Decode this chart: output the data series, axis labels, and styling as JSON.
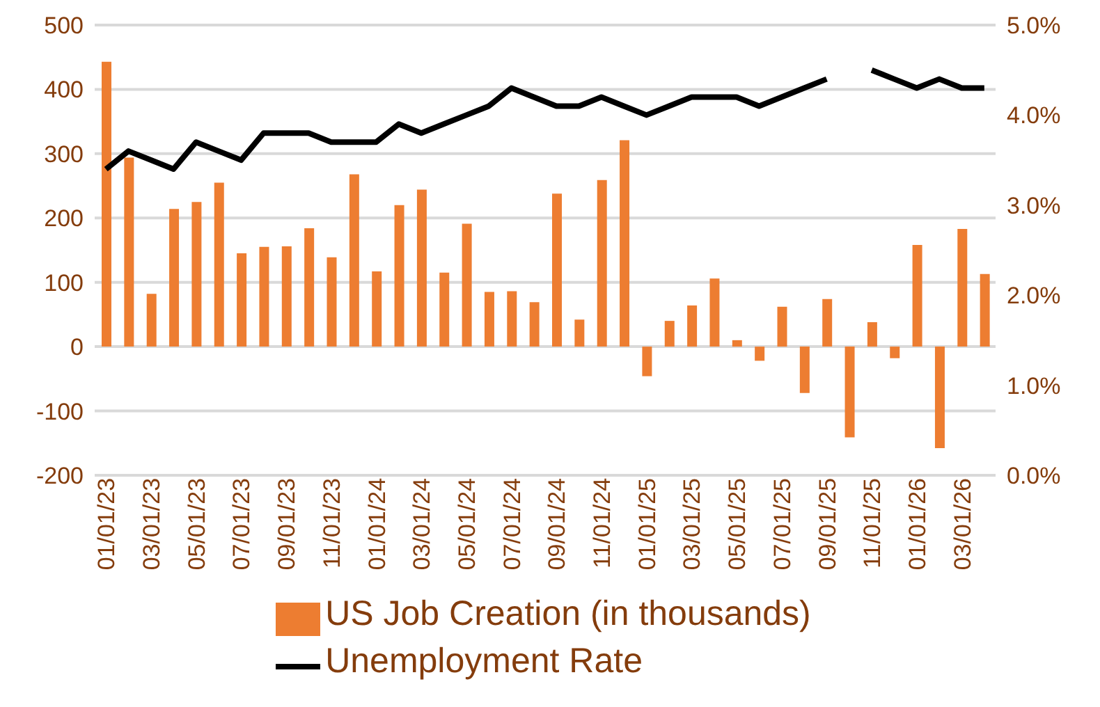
{
  "chart_data": {
    "type": "bar",
    "categories": [
      "01/01/23",
      null,
      "03/01/23",
      null,
      "05/01/23",
      null,
      "07/01/23",
      null,
      "09/01/23",
      null,
      "11/01/23",
      null,
      "01/01/24",
      null,
      "03/01/24",
      null,
      "05/01/24",
      null,
      "07/01/24",
      null,
      "09/01/24",
      null,
      "11/01/24",
      null,
      "01/01/25",
      null,
      "03/01/25",
      null,
      "05/01/25",
      null,
      "07/01/25",
      null,
      "09/01/25",
      null,
      "11/01/25",
      null,
      "01/01/26",
      null,
      "03/01/26",
      null
    ],
    "series": [
      {
        "name": "US Job Creation (in thousands)",
        "color": "#ed7d31",
        "values": [
          443,
          294,
          82,
          214,
          225,
          255,
          145,
          155,
          156,
          184,
          139,
          268,
          117,
          220,
          244,
          115,
          191,
          85,
          86,
          69,
          238,
          42,
          259,
          321,
          -46,
          40,
          64,
          106,
          10,
          -22,
          62,
          -72,
          74,
          -141,
          38,
          -18,
          158,
          -158,
          183,
          113
        ]
      },
      {
        "name": "Unemployment Rate",
        "type": "line",
        "axis": "y2",
        "color": "#000000",
        "values": [
          3.4,
          3.6,
          3.5,
          3.4,
          3.7,
          3.6,
          3.5,
          3.8,
          3.8,
          3.8,
          3.7,
          3.7,
          3.7,
          3.9,
          3.8,
          3.9,
          4.0,
          4.1,
          4.3,
          4.2,
          4.1,
          4.1,
          4.2,
          4.1,
          4.0,
          4.1,
          4.2,
          4.2,
          4.2,
          4.1,
          4.2,
          4.3,
          4.4,
          null,
          4.5,
          4.4,
          4.3,
          4.4,
          4.3,
          4.3
        ]
      }
    ],
    "ylim": [
      -200,
      500
    ],
    "yticks": [
      -200,
      -100,
      0,
      100,
      200,
      300,
      400,
      500
    ],
    "y2lim": [
      0,
      5
    ],
    "y2ticks": [
      {
        "value": 0,
        "label": "0.0%"
      },
      {
        "value": 1,
        "label": "1.0%"
      },
      {
        "value": 2,
        "label": "2.0%"
      },
      {
        "value": 3,
        "label": "3.0%"
      },
      {
        "value": 4,
        "label": "4.0%"
      },
      {
        "value": 5,
        "label": "5.0%"
      }
    ],
    "grid": "y",
    "legend": "bottom",
    "marker": "none",
    "line_style": "solid"
  }
}
